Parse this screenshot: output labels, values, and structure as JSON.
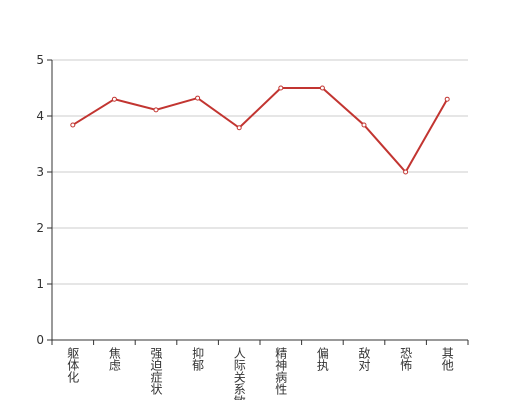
{
  "chart_data": {
    "type": "line",
    "categories": [
      "躯体化",
      "焦虑",
      "强迫症状",
      "抑郁",
      "人际关系敏感",
      "精神病性",
      "偏执",
      "敌对",
      "恐怖",
      "其他"
    ],
    "series": [
      {
        "color": "#c23531",
        "values": [
          3.84,
          4.3,
          4.11,
          4.32,
          3.79,
          4.5,
          4.5,
          3.84,
          3.0,
          4.3
        ]
      }
    ],
    "ylim": [
      0,
      5
    ],
    "yticks": [
      0,
      1,
      2,
      3,
      4,
      5
    ],
    "grid": true
  }
}
